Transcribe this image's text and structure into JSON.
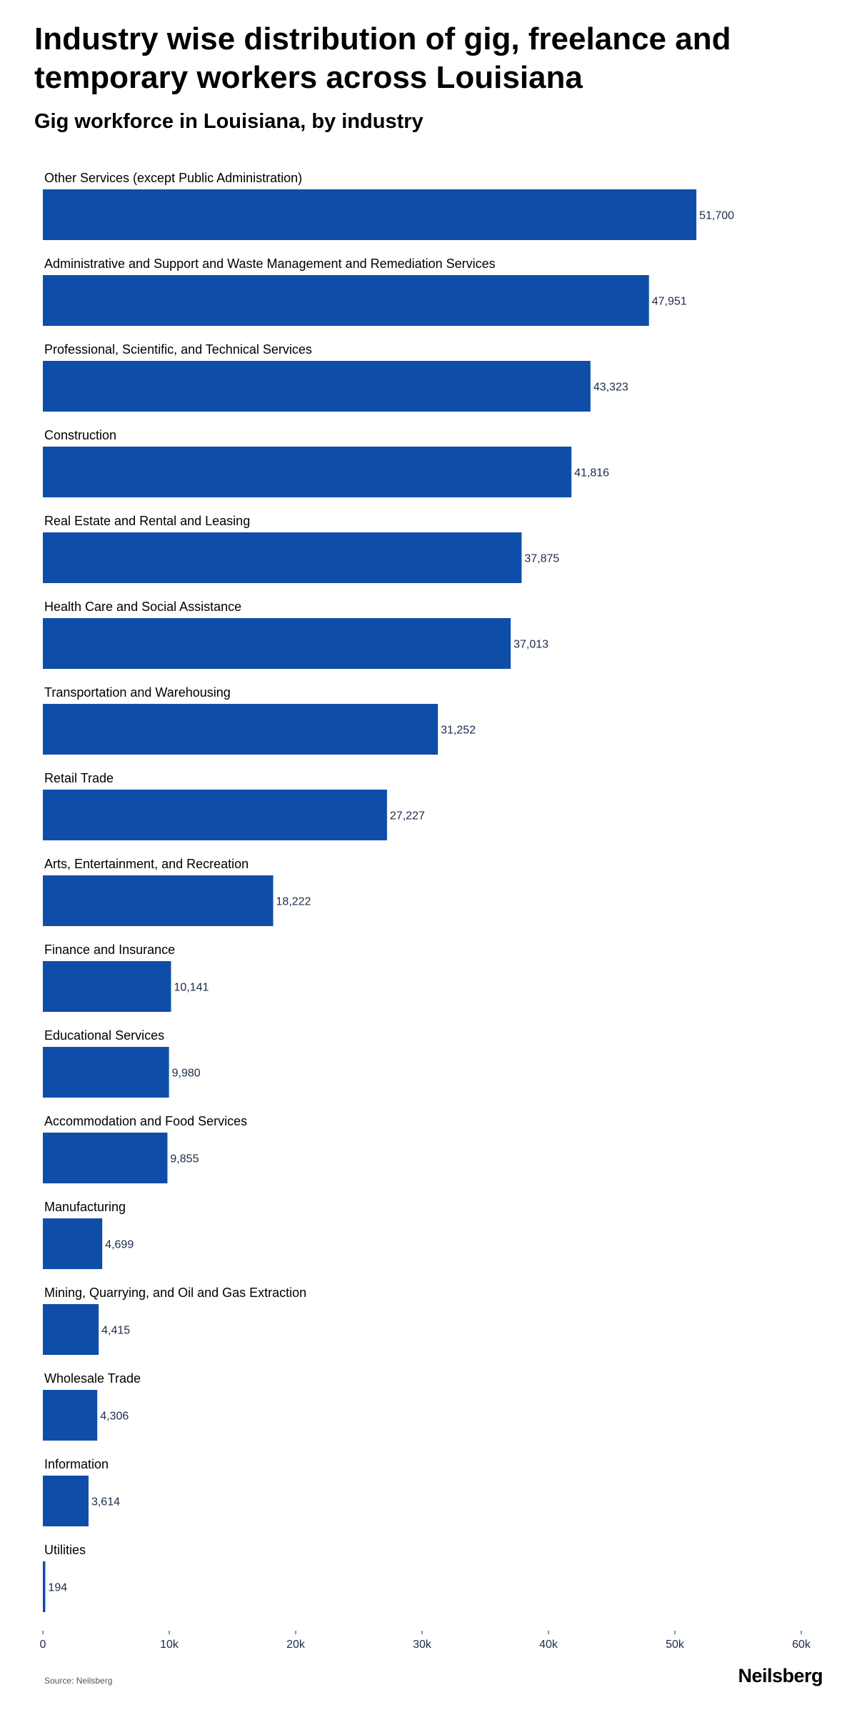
{
  "header": {
    "title": "Industry wise distribution of gig, freelance and temporary workers across Louisiana",
    "subtitle": "Gig workforce in Louisiana, by industry"
  },
  "footer": {
    "source": "Source: Neilsberg",
    "brand": "Neilsberg"
  },
  "colors": {
    "bar": "#0f4ea8",
    "value_label": "#1c2a4a",
    "axis_label": "#1c2a4a"
  },
  "chart_data": {
    "type": "bar",
    "orientation": "horizontal",
    "categories": [
      "Other Services (except Public Administration)",
      "Administrative and Support and Waste Management and Remediation Services",
      "Professional, Scientific, and Technical Services",
      "Construction",
      "Real Estate and Rental and Leasing",
      "Health Care and Social Assistance",
      "Transportation and Warehousing",
      "Retail Trade",
      "Arts, Entertainment, and Recreation",
      "Finance and Insurance",
      "Educational Services",
      "Accommodation and Food Services",
      "Manufacturing",
      "Mining, Quarrying, and Oil and Gas Extraction",
      "Wholesale Trade",
      "Information",
      "Utilities"
    ],
    "values": [
      51700,
      47951,
      43323,
      41816,
      37875,
      37013,
      31252,
      27227,
      18222,
      10141,
      9980,
      9855,
      4699,
      4415,
      4306,
      3614,
      194
    ],
    "value_labels": [
      "51,700",
      "47,951",
      "43,323",
      "41,816",
      "37,875",
      "37,013",
      "31,252",
      "27,227",
      "18,222",
      "10,141",
      "9,980",
      "9,855",
      "4,699",
      "4,415",
      "4,306",
      "3,614",
      "194"
    ],
    "xlim": [
      0,
      60000
    ],
    "xticks": [
      0,
      10000,
      20000,
      30000,
      40000,
      50000,
      60000
    ],
    "xtick_labels": [
      "0",
      "10k",
      "20k",
      "30k",
      "40k",
      "50k",
      "60k"
    ],
    "grid": false,
    "legend": "none"
  }
}
